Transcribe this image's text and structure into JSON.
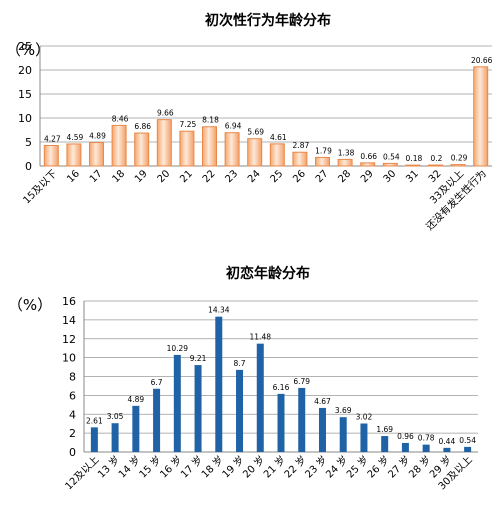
{
  "chart_data": [
    {
      "type": "bar",
      "title": "初次性行为年龄分布",
      "ylabel": "（%）",
      "xlabel": "",
      "ylim": [
        0,
        25
      ],
      "yticks": [
        "0",
        "5",
        "10",
        "15",
        "20",
        "25"
      ],
      "grid": true,
      "bar_style": "orange gradient",
      "colors": {
        "bar_edge": "#e8884a",
        "bar_fill_top": "#fbe3cf",
        "bar_fill_side": "#f4a36a",
        "axis": "#888888"
      },
      "categories": [
        "15及以下",
        "16",
        "17",
        "18",
        "19",
        "20",
        "21",
        "22",
        "23",
        "24",
        "25",
        "26",
        "27",
        "28",
        "29",
        "30",
        "31",
        "32",
        "33及以上",
        "还没有发生性行为"
      ],
      "values": [
        4.27,
        4.59,
        4.89,
        8.46,
        6.86,
        9.66,
        7.25,
        8.18,
        6.94,
        5.69,
        4.61,
        2.87,
        1.79,
        1.38,
        0.66,
        0.54,
        0.18,
        0.2,
        0.29,
        20.66
      ],
      "labels": [
        "4.27",
        "4.59",
        "4.89",
        "8.46",
        "6.86",
        "9.66",
        "7.25",
        "8.18",
        "6.94",
        "5.69",
        "4.61",
        "2.87",
        "1.79",
        "1.38",
        "0.66",
        "0.54",
        "0.18",
        "0.2",
        "0.29",
        "20.66"
      ]
    },
    {
      "type": "bar",
      "title": "初恋年龄分布",
      "ylabel": "（%）",
      "xlabel": "",
      "ylim": [
        0,
        16
      ],
      "yticks": [
        "0",
        "2",
        "4",
        "6",
        "8",
        "10",
        "12",
        "14",
        "16"
      ],
      "grid": true,
      "colors": {
        "bar": "#1f63a6",
        "axis": "#888888"
      },
      "categories": [
        "12及以上",
        "13 岁",
        "14 岁",
        "15 岁",
        "16 岁",
        "17 岁",
        "18 岁",
        "19 岁",
        "20 岁",
        "21 岁",
        "22 岁",
        "23 岁",
        "24 岁",
        "25 岁",
        "26 岁",
        "27 岁",
        "28 岁",
        "29 岁",
        "30及以上"
      ],
      "values": [
        2.61,
        3.05,
        4.89,
        6.7,
        10.29,
        9.21,
        14.34,
        8.7,
        11.48,
        6.16,
        6.79,
        4.67,
        3.69,
        3.02,
        1.69,
        0.96,
        0.78,
        0.44,
        0.54
      ],
      "labels": [
        "2.61",
        "3.05",
        "4.89",
        "6.7",
        "10.29",
        "9.21",
        "14.34",
        "8.7",
        "11.48",
        "6.16",
        "6.79",
        "4.67",
        "3.69",
        "3.02",
        "1.69",
        "0.96",
        "0.78",
        "0.44",
        "0.54"
      ]
    }
  ]
}
